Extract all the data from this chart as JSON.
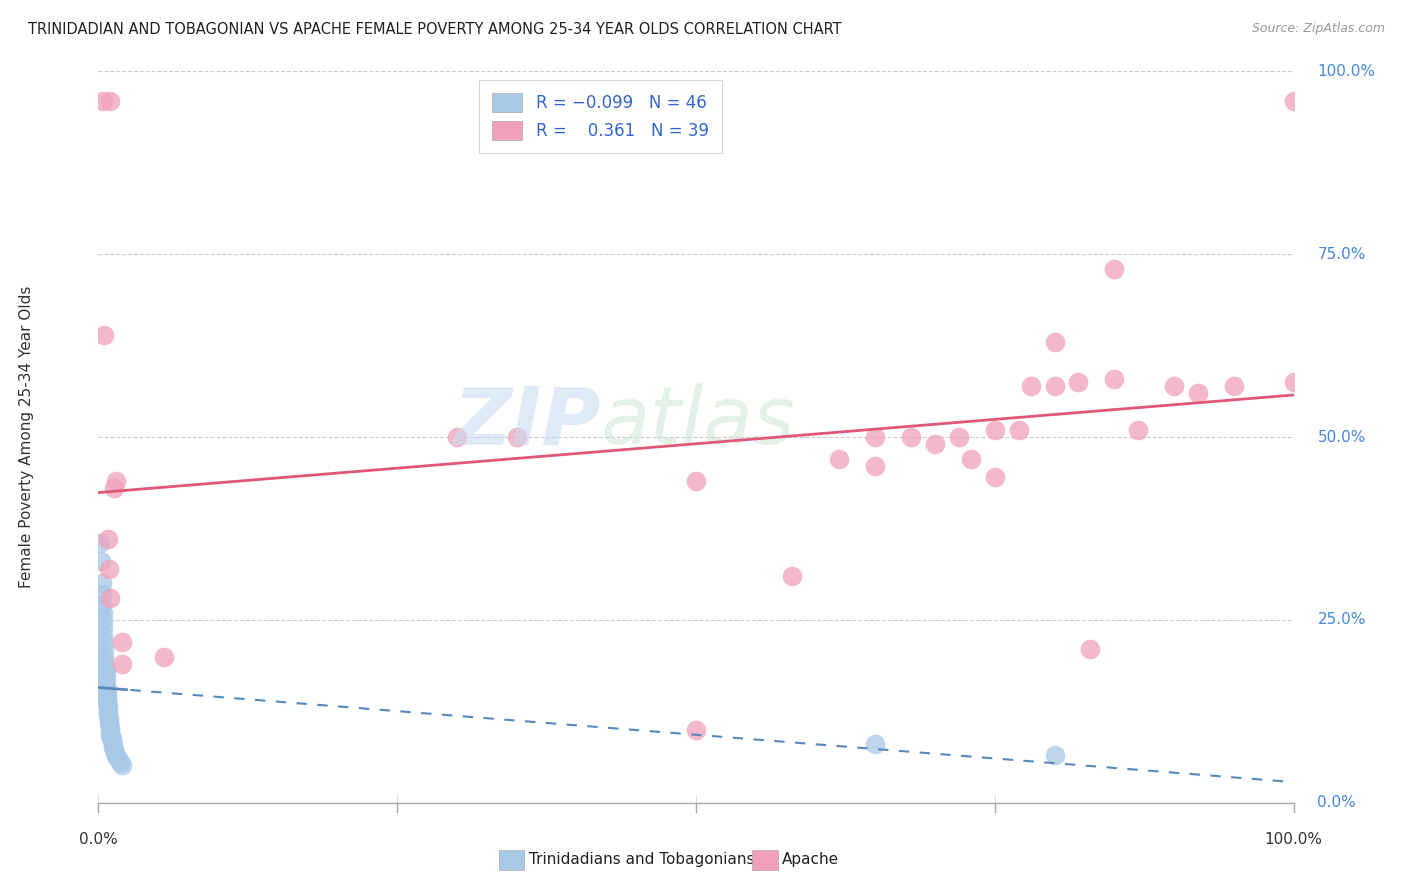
{
  "title": "TRINIDADIAN AND TOBAGONIAN VS APACHE FEMALE POVERTY AMONG 25-34 YEAR OLDS CORRELATION CHART",
  "source": "Source: ZipAtlas.com",
  "ylabel": "Female Poverty Among 25-34 Year Olds",
  "legend_label1": "Trinidadians and Tobagonians",
  "legend_label2": "Apache",
  "color_blue": "#a8c8e8",
  "color_pink": "#f0a0b8",
  "color_blue_line": "#5588bb",
  "color_pink_line": "#e05878",
  "color_axis_label": "#4488dd",
  "background_color": "#ffffff",
  "blue_points": [
    [
      0.001,
      0.355
    ],
    [
      0.002,
      0.33
    ],
    [
      0.003,
      0.3
    ],
    [
      0.003,
      0.285
    ],
    [
      0.003,
      0.27
    ],
    [
      0.004,
      0.26
    ],
    [
      0.004,
      0.25
    ],
    [
      0.004,
      0.24
    ],
    [
      0.004,
      0.23
    ],
    [
      0.005,
      0.22
    ],
    [
      0.005,
      0.21
    ],
    [
      0.005,
      0.2
    ],
    [
      0.005,
      0.195
    ],
    [
      0.005,
      0.188
    ],
    [
      0.006,
      0.182
    ],
    [
      0.006,
      0.175
    ],
    [
      0.006,
      0.168
    ],
    [
      0.006,
      0.16
    ],
    [
      0.007,
      0.155
    ],
    [
      0.007,
      0.15
    ],
    [
      0.007,
      0.145
    ],
    [
      0.007,
      0.14
    ],
    [
      0.007,
      0.136
    ],
    [
      0.008,
      0.132
    ],
    [
      0.008,
      0.128
    ],
    [
      0.008,
      0.124
    ],
    [
      0.008,
      0.12
    ],
    [
      0.009,
      0.116
    ],
    [
      0.009,
      0.112
    ],
    [
      0.009,
      0.108
    ],
    [
      0.01,
      0.104
    ],
    [
      0.01,
      0.1
    ],
    [
      0.01,
      0.096
    ],
    [
      0.01,
      0.092
    ],
    [
      0.011,
      0.088
    ],
    [
      0.011,
      0.084
    ],
    [
      0.012,
      0.08
    ],
    [
      0.012,
      0.076
    ],
    [
      0.013,
      0.072
    ],
    [
      0.014,
      0.068
    ],
    [
      0.015,
      0.064
    ],
    [
      0.016,
      0.06
    ],
    [
      0.018,
      0.056
    ],
    [
      0.02,
      0.052
    ],
    [
      0.65,
      0.08
    ],
    [
      0.8,
      0.065
    ]
  ],
  "pink_points": [
    [
      0.004,
      0.96
    ],
    [
      0.01,
      0.96
    ],
    [
      0.005,
      0.64
    ],
    [
      0.008,
      0.36
    ],
    [
      0.009,
      0.32
    ],
    [
      0.01,
      0.28
    ],
    [
      0.013,
      0.43
    ],
    [
      0.015,
      0.44
    ],
    [
      0.02,
      0.22
    ],
    [
      0.02,
      0.19
    ],
    [
      0.055,
      0.2
    ],
    [
      0.3,
      0.5
    ],
    [
      0.35,
      0.5
    ],
    [
      0.5,
      0.44
    ],
    [
      0.58,
      0.31
    ],
    [
      0.62,
      0.47
    ],
    [
      0.65,
      0.46
    ],
    [
      0.65,
      0.5
    ],
    [
      0.68,
      0.5
    ],
    [
      0.7,
      0.49
    ],
    [
      0.72,
      0.5
    ],
    [
      0.73,
      0.47
    ],
    [
      0.75,
      0.445
    ],
    [
      0.75,
      0.51
    ],
    [
      0.77,
      0.51
    ],
    [
      0.78,
      0.57
    ],
    [
      0.8,
      0.57
    ],
    [
      0.8,
      0.63
    ],
    [
      0.82,
      0.575
    ],
    [
      0.83,
      0.21
    ],
    [
      0.85,
      0.58
    ],
    [
      0.85,
      0.73
    ],
    [
      0.87,
      0.51
    ],
    [
      0.9,
      0.57
    ],
    [
      0.92,
      0.56
    ],
    [
      0.95,
      0.57
    ],
    [
      1.0,
      0.575
    ],
    [
      1.0,
      0.96
    ],
    [
      0.5,
      0.1
    ]
  ],
  "xlim": [
    0,
    1.0
  ],
  "ylim": [
    0,
    1.0
  ],
  "xtick_positions": [
    0,
    0.25,
    0.5,
    0.75,
    1.0
  ],
  "ytick_positions": [
    0,
    0.25,
    0.5,
    0.75,
    1.0
  ],
  "xtick_labels": [
    "0.0%",
    "",
    "",
    "",
    "100.0%"
  ],
  "ytick_labels_right": [
    "0.0%",
    "25.0%",
    "50.0%",
    "75.0%",
    "100.0%"
  ]
}
